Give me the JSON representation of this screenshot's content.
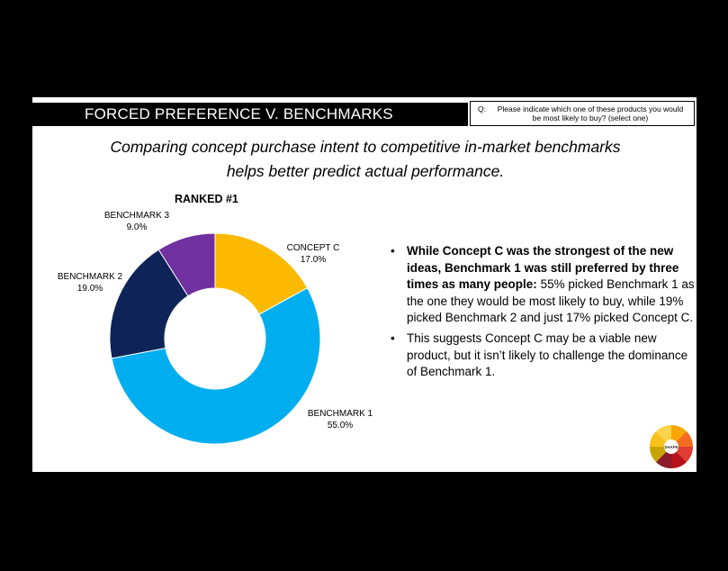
{
  "slide": {
    "title": "FORCED PREFERENCE V. BENCHMARKS",
    "question_label": "Q:",
    "question": "Please indicate which one of these products you would be most likely to buy? (select one)",
    "subtitle_line1": "Comparing concept purchase intent to competitive in-market benchmarks",
    "subtitle_line2": "helps better predict actual performance."
  },
  "chart_data": {
    "type": "pie",
    "subtype": "donut",
    "title": "RANKED #1",
    "start_angle_deg": 0,
    "direction": "clockwise",
    "slices": [
      {
        "name": "CONCEPT C",
        "value": 17.0,
        "label": "17.0%",
        "color": "#FBBA00"
      },
      {
        "name": "BENCHMARK 1",
        "value": 55.0,
        "label": "55.0%",
        "color": "#00AEEF"
      },
      {
        "name": "BENCHMARK 2",
        "value": 19.0,
        "label": "19.0%",
        "color": "#0E2458"
      },
      {
        "name": "BENCHMARK 3",
        "value": 9.0,
        "label": "9.0%",
        "color": "#7030A0"
      }
    ]
  },
  "bullets": [
    {
      "bold": "While Concept C was the strongest of the new ideas, Benchmark 1 was still preferred by three times as many people:",
      "text": " 55% picked Benchmark 1 as the one they would be most likely to buy, while 19% picked Benchmark 2 and just 17% picked Concept C."
    },
    {
      "bold": "",
      "text": "This suggests Concept C may be a viable new product, but it isn’t likely to challenge the dominance of Benchmark 1."
    }
  ],
  "bullet_symbol": "•",
  "logo": {
    "icon": "segmented-wheel-logo",
    "text": "SHAPE"
  }
}
